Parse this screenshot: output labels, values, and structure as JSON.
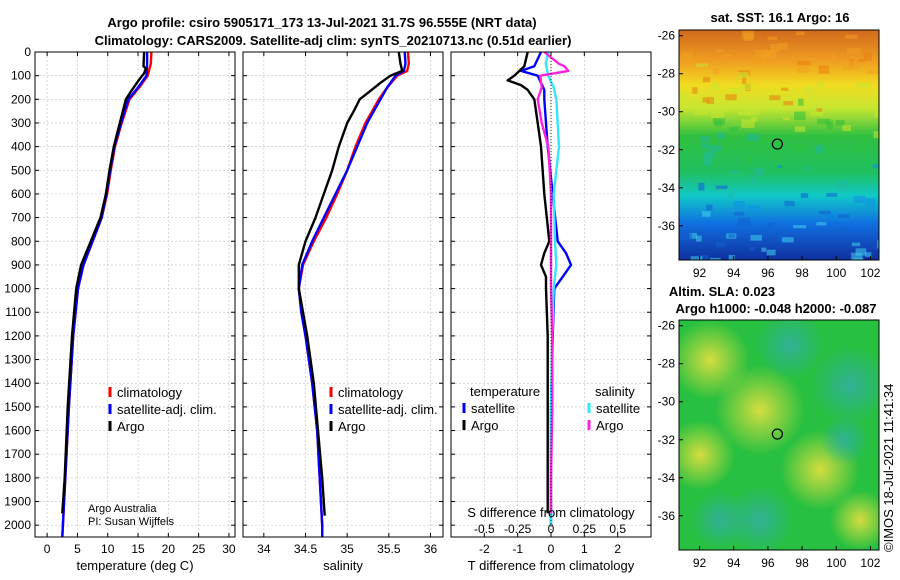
{
  "figure": {
    "title_line1": "Argo profile: csiro 5905171_173 13-Jul-2021 31.7S 96.555E (NRT data)",
    "title_line2": "Climatology: CARS2009. Satellite-adj clim: synTS_20210713.nc (0.51d earlier)",
    "credit_line1": "Argo Australia",
    "credit_line2": "PI: Susan Wijffels",
    "watermark": "©IMOS 18-Jul-2021 11:41:34"
  },
  "colors": {
    "climatology": "#ff0000",
    "satellite": "#0000ff",
    "argo": "#000000",
    "sat_salinity": "#33e6ff",
    "argo_salinity": "#ff22dd"
  },
  "chart_data": [
    {
      "type": "line",
      "id": "temperature",
      "xlabel": "temperature (deg C)",
      "xlim": [
        -2,
        31
      ],
      "xticks": [
        0,
        5,
        10,
        15,
        20,
        25,
        30
      ],
      "ylim": [
        0,
        2050
      ],
      "yticks": [
        0,
        100,
        200,
        300,
        400,
        500,
        600,
        700,
        800,
        900,
        1000,
        1100,
        1200,
        1300,
        1400,
        1500,
        1600,
        1700,
        1800,
        1900,
        2000
      ],
      "legend": [
        "climatology",
        "satellite-adj. clim.",
        "Argo"
      ],
      "series": [
        {
          "name": "climatology",
          "color": "#ff0000",
          "depth": [
            0,
            50,
            100,
            150,
            200,
            300,
            400,
            500,
            600,
            700,
            800,
            900,
            1000,
            1200,
            1500,
            1800,
            2000,
            2050
          ],
          "values": [
            17.2,
            17.1,
            16.6,
            15.2,
            13.6,
            12.3,
            11.2,
            10.5,
            9.9,
            9.0,
            7.5,
            6.0,
            5.1,
            4.3,
            3.6,
            3.0,
            2.6,
            2.5
          ]
        },
        {
          "name": "satellite-adj. clim.",
          "color": "#0000ff",
          "depth": [
            0,
            50,
            100,
            150,
            200,
            300,
            400,
            500,
            600,
            700,
            800,
            900,
            1000,
            1200,
            1500,
            1800,
            2000,
            2050
          ],
          "values": [
            16.5,
            16.5,
            16.4,
            15.0,
            13.4,
            12.2,
            11.1,
            10.4,
            9.8,
            9.0,
            7.5,
            6.0,
            5.1,
            4.3,
            3.6,
            3.0,
            2.6,
            2.5
          ]
        },
        {
          "name": "Argo",
          "color": "#000000",
          "depth": [
            0,
            60,
            70,
            90,
            120,
            160,
            200,
            300,
            400,
            500,
            600,
            700,
            800,
            900,
            1000,
            1200,
            1500,
            1800,
            1950
          ],
          "values": [
            16.0,
            15.9,
            16.3,
            16.0,
            15.1,
            14.0,
            13.0,
            12.0,
            11.0,
            10.3,
            9.7,
            8.8,
            7.2,
            5.6,
            4.8,
            4.1,
            3.4,
            2.9,
            2.5
          ]
        }
      ]
    },
    {
      "type": "line",
      "id": "salinity",
      "xlabel": "salinity",
      "xlim": [
        33.75,
        36.15
      ],
      "xticks": [
        34,
        34.5,
        35,
        35.5,
        36
      ],
      "ylim": [
        0,
        2050
      ],
      "legend": [
        "climatology",
        "satellite-adj. clim.",
        "Argo"
      ],
      "series": [
        {
          "name": "climatology",
          "color": "#ff0000",
          "depth": [
            0,
            50,
            80,
            100,
            150,
            200,
            250,
            300,
            400,
            500,
            600,
            700,
            800,
            900,
            1000,
            1100,
            1200,
            1400,
            1600,
            1800,
            2000,
            2050
          ],
          "values": [
            35.73,
            35.74,
            35.72,
            35.6,
            35.48,
            35.38,
            35.3,
            35.22,
            35.1,
            35.0,
            34.88,
            34.75,
            34.6,
            34.47,
            34.42,
            34.45,
            34.5,
            34.58,
            34.64,
            34.67,
            34.7,
            34.7
          ]
        },
        {
          "name": "satellite-adj. clim.",
          "color": "#0000ff",
          "depth": [
            0,
            50,
            80,
            100,
            150,
            200,
            250,
            300,
            400,
            500,
            600,
            700,
            800,
            900,
            1000,
            1100,
            1200,
            1400,
            1600,
            1800,
            2000,
            2050
          ],
          "values": [
            35.69,
            35.7,
            35.68,
            35.58,
            35.48,
            35.4,
            35.32,
            35.24,
            35.12,
            35.0,
            34.86,
            34.72,
            34.58,
            34.46,
            34.42,
            34.45,
            34.5,
            34.58,
            34.64,
            34.67,
            34.7,
            34.7
          ]
        },
        {
          "name": "Argo",
          "color": "#000000",
          "depth": [
            0,
            50,
            80,
            100,
            130,
            170,
            200,
            250,
            300,
            400,
            500,
            600,
            700,
            800,
            900,
            1000,
            1100,
            1200,
            1400,
            1600,
            1800,
            1960
          ],
          "values": [
            35.62,
            35.64,
            35.66,
            35.52,
            35.4,
            35.26,
            35.15,
            35.08,
            35.0,
            34.9,
            34.82,
            34.72,
            34.62,
            34.5,
            34.42,
            34.42,
            34.47,
            34.52,
            34.6,
            34.65,
            34.7,
            34.73
          ]
        }
      ]
    },
    {
      "type": "line",
      "id": "difference",
      "xlabel": "T difference from climatology",
      "xlabel_top": "S difference from climatology",
      "xlim": [
        -3,
        3
      ],
      "xticks": [
        -2,
        -1,
        0,
        1,
        2
      ],
      "sticks": [
        -0.5,
        -0.25,
        0,
        0.25,
        0.5
      ],
      "slabels": [
        "-0.5",
        "-0.25",
        "0",
        "0.25",
        "0.5"
      ],
      "ylim": [
        0,
        2050
      ],
      "legend_temperature_title": "temperature",
      "legend_salinity_title": "salinity",
      "legend_temperature": [
        "satellite",
        "Argo"
      ],
      "legend_salinity": [
        "satellite",
        "Argo"
      ],
      "series": [
        {
          "name": "T satellite",
          "color": "#0000ff",
          "depth": [
            0,
            60,
            80,
            100,
            130,
            160,
            200,
            400,
            600,
            800,
            850,
            900,
            950,
            1000,
            1200,
            1500,
            1800,
            2000
          ],
          "values": [
            -0.3,
            -0.5,
            -0.9,
            -0.4,
            -0.3,
            -0.2,
            -0.2,
            -0.1,
            0.05,
            0.2,
            0.45,
            0.6,
            0.35,
            0.1,
            0.05,
            0.0,
            0.0,
            0.0
          ]
        },
        {
          "name": "T Argo",
          "color": "#000000",
          "depth": [
            0,
            60,
            100,
            120,
            140,
            160,
            200,
            300,
            400,
            600,
            800,
            850,
            900,
            950,
            1000,
            1200,
            1500,
            1800,
            1950
          ],
          "values": [
            -0.7,
            -0.8,
            -1.1,
            -1.3,
            -0.9,
            -0.7,
            -0.5,
            -0.4,
            -0.3,
            -0.2,
            -0.05,
            -0.2,
            -0.3,
            -0.15,
            -0.15,
            -0.1,
            -0.1,
            -0.1,
            -0.1
          ]
        },
        {
          "name": "S satellite",
          "color": "#33e6ff",
          "depth": [
            0,
            50,
            100,
            150,
            200,
            400,
            600,
            800,
            900,
            1000,
            1200,
            1500,
            1800,
            2000
          ],
          "values": [
            -0.02,
            -0.04,
            -0.02,
            0.02,
            0.04,
            0.06,
            0.02,
            0.03,
            0.04,
            0.02,
            0.01,
            0.0,
            0.0,
            0.0
          ]
        },
        {
          "name": "S Argo",
          "color": "#ff22dd",
          "depth": [
            0,
            50,
            60,
            80,
            100,
            150,
            200,
            300,
            400,
            600,
            800,
            1000,
            1200,
            1500,
            1800,
            1950
          ],
          "values": [
            -0.05,
            0.06,
            0.1,
            0.13,
            -0.08,
            -0.07,
            -0.1,
            -0.07,
            -0.02,
            0.0,
            0.0,
            0.0,
            0.01,
            0.01,
            0.0,
            0.0
          ]
        }
      ]
    },
    {
      "type": "heatmap",
      "id": "sst_map",
      "title": "sat. SST: 16.1 Argo: 16",
      "xticks": [
        92,
        94,
        96,
        98,
        100,
        102
      ],
      "yticks": [
        -26,
        -28,
        -30,
        -32,
        -34,
        -36
      ],
      "xlim": [
        90.8,
        102.5
      ],
      "ylim": [
        -37.8,
        -25.7
      ],
      "marker": {
        "lon": 96.555,
        "lat": -31.7
      }
    },
    {
      "type": "heatmap",
      "id": "sla_map",
      "title_line1": "Altim. SLA: 0.023",
      "title_line2": "Argo h1000: -0.048 h2000: -0.087",
      "xticks": [
        92,
        94,
        96,
        98,
        100,
        102
      ],
      "yticks": [
        -26,
        -28,
        -30,
        -32,
        -34,
        -36
      ],
      "xlim": [
        90.8,
        102.5
      ],
      "ylim": [
        -37.8,
        -25.7
      ],
      "marker": {
        "lon": 96.555,
        "lat": -31.7
      }
    }
  ]
}
